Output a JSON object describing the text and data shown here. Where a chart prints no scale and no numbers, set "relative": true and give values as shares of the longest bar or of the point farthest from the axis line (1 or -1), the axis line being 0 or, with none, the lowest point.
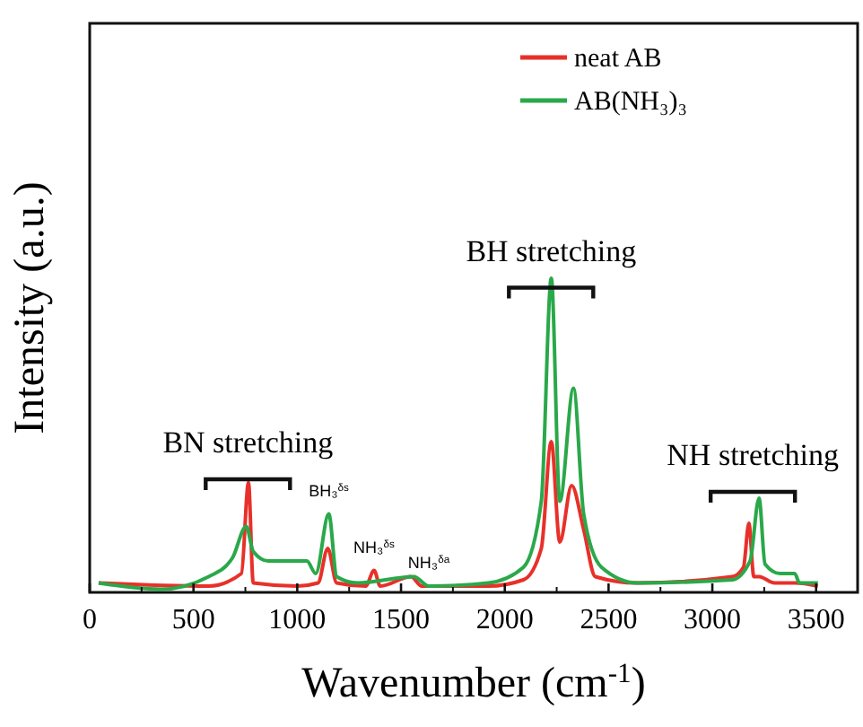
{
  "chart_data": {
    "type": "line",
    "xlabel": "Wavenumber (cm$^{-1}$)",
    "ylabel": "Intensity (a.u.)",
    "relative": true,
    "tick_labels": "x",
    "legend": "top right",
    "xlim": [
      0,
      3700
    ],
    "xticks": [
      0,
      500,
      1000,
      1500,
      2000,
      2500,
      3000,
      3500
    ],
    "series": [
      {
        "name": "neat AB",
        "color": "#e8302a",
        "x": [
          43,
          573,
          731,
          765,
          788,
          1000,
          1100,
          1147,
          1190,
          1330,
          1370,
          1400,
          1548,
          1600,
          1920,
          2090,
          2176,
          2224,
          2265,
          2322,
          2380,
          2436,
          2638,
          3096,
          3150,
          3176,
          3200,
          3225,
          3300,
          3400,
          3509
        ],
        "values": [
          0.03,
          0.02,
          0.06,
          0.35,
          0.03,
          0.02,
          0.03,
          0.14,
          0.03,
          0.02,
          0.07,
          0.02,
          0.05,
          0.02,
          0.02,
          0.04,
          0.14,
          0.48,
          0.16,
          0.34,
          0.2,
          0.05,
          0.03,
          0.05,
          0.08,
          0.22,
          0.05,
          0.05,
          0.03,
          0.03,
          0.02
        ]
      },
      {
        "name": "AB(NH₃)₃",
        "color": "#2aa84a",
        "x": [
          43,
          344,
          573,
          688,
          754,
          788,
          860,
          1046,
          1089,
          1152,
          1190,
          1290,
          1562,
          1634,
          1920,
          2090,
          2176,
          2224,
          2265,
          2331,
          2380,
          2466,
          2638,
          3096,
          3182,
          3225,
          3254,
          3326,
          3397,
          3420,
          3509
        ],
        "values": [
          0.03,
          0.01,
          0.05,
          0.11,
          0.21,
          0.13,
          0.1,
          0.1,
          0.06,
          0.25,
          0.05,
          0.03,
          0.05,
          0.02,
          0.03,
          0.08,
          0.29,
          1.0,
          0.29,
          0.65,
          0.25,
          0.08,
          0.03,
          0.04,
          0.1,
          0.3,
          0.09,
          0.06,
          0.06,
          0.03,
          0.03
        ]
      }
    ],
    "annotations": [
      {
        "text": "BN stretching",
        "x": 762,
        "y": 0.36
      },
      {
        "text": "BH stretching",
        "x": 2223,
        "y": 0.97
      },
      {
        "text": "NH stretching",
        "x": 3195,
        "y": 0.32
      },
      {
        "text": "BH₃$^{δs}$",
        "x": 1152,
        "y": 0.25
      },
      {
        "text": "NH₃$^{δs}$",
        "x": 1370,
        "y": 0.07
      },
      {
        "text": "NH₃$^{δa}$",
        "x": 1634,
        "y": 0.02
      }
    ]
  }
}
